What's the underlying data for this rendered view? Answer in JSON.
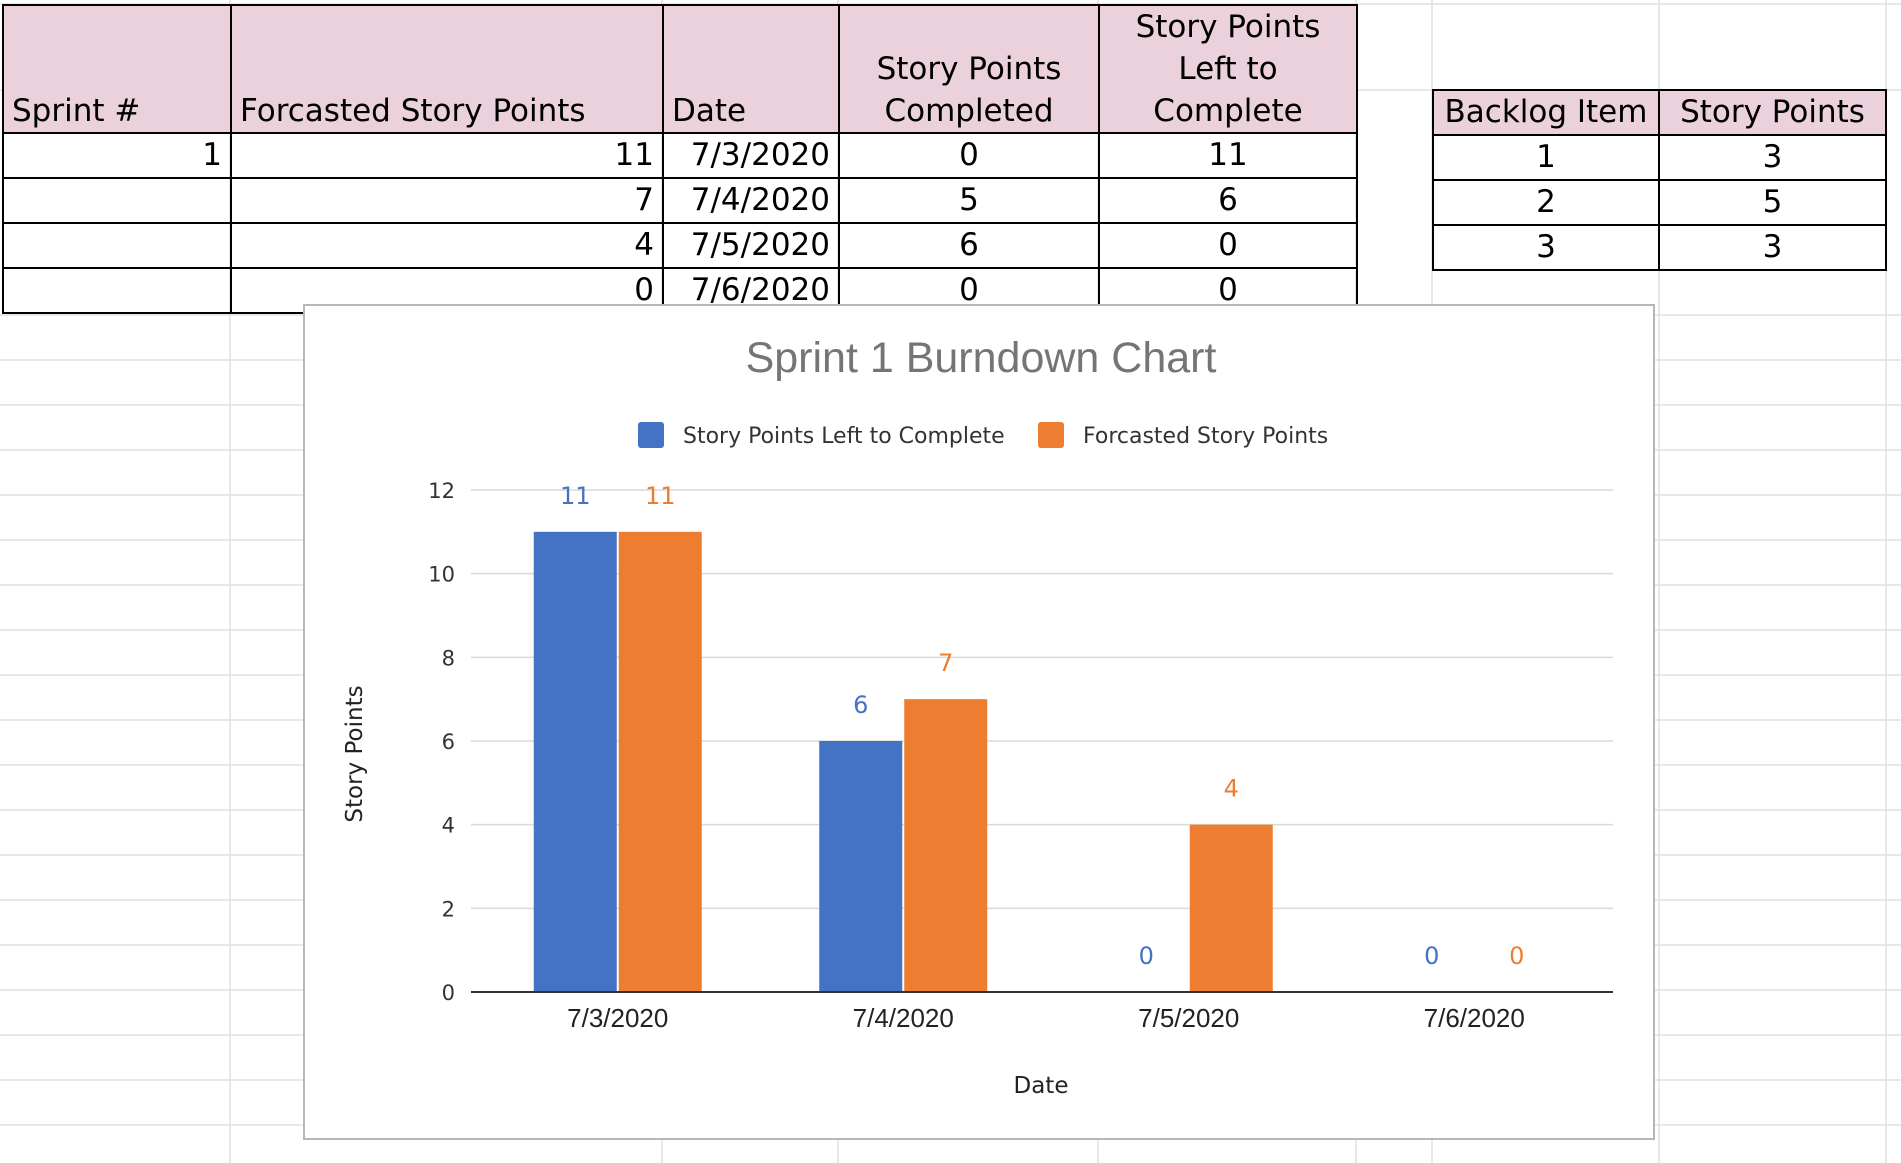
{
  "sprint_table": {
    "headers": [
      "Sprint #",
      "Forcasted Story Points",
      "Date",
      "Story Points Completed",
      "Story Points Left to Complete"
    ],
    "rows": [
      [
        "1",
        "11",
        "7/3/2020",
        "0",
        "11"
      ],
      [
        "",
        "7",
        "7/4/2020",
        "5",
        "6"
      ],
      [
        "",
        "4",
        "7/5/2020",
        "6",
        "0"
      ],
      [
        "",
        "0",
        "7/6/2020",
        "0",
        "0"
      ]
    ]
  },
  "backlog_table": {
    "headers": [
      "Backlog Item",
      "Story Points"
    ],
    "rows": [
      [
        "1",
        "3"
      ],
      [
        "2",
        "5"
      ],
      [
        "3",
        "3"
      ]
    ]
  },
  "chart_data": {
    "type": "bar",
    "title": "Sprint 1 Burndown Chart",
    "xlabel": "Date",
    "ylabel": "Story Points",
    "categories": [
      "7/3/2020",
      "7/4/2020",
      "7/5/2020",
      "7/6/2020"
    ],
    "series": [
      {
        "name": "Story Points Left to Complete",
        "values": [
          11,
          6,
          0,
          0
        ],
        "color": "#4472c4"
      },
      {
        "name": "Forcasted Story Points",
        "values": [
          11,
          7,
          4,
          0
        ],
        "color": "#ed7d31"
      }
    ],
    "ylim": [
      0,
      12
    ],
    "yticks": [
      0,
      2,
      4,
      6,
      8,
      10,
      12
    ],
    "grid": true,
    "legend": "top-center",
    "data_labels": true
  }
}
